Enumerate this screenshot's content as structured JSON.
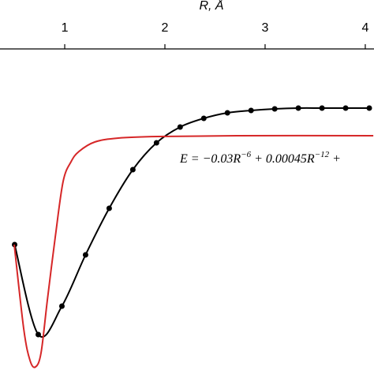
{
  "chart_data": {
    "type": "line",
    "xlabel": "R, Å",
    "xlim": [
      0.354,
      4.087
    ],
    "xticks": [
      1,
      2,
      3,
      4
    ],
    "ylim": [
      -3.02,
      1.1
    ],
    "annotation": [
      "E = −0.03R",
      "−6",
      " + 0.00045R",
      "−12",
      " +"
    ],
    "series": [
      {
        "color": "#000000",
        "markers": true,
        "x": [
          0.5,
          0.736,
          0.972,
          1.208,
          1.444,
          1.68,
          1.916,
          2.152,
          2.388,
          2.624,
          2.86,
          3.096,
          3.332,
          3.568,
          3.804,
          4.04
        ],
        "values": [
          -1.38,
          -2.52,
          -2.16,
          -1.51,
          -0.92,
          -0.43,
          -0.09,
          0.11,
          0.22,
          0.29,
          0.32,
          0.34,
          0.35,
          0.35,
          0.35,
          0.35
        ]
      },
      {
        "color": "#d62728",
        "markers": false,
        "x": [
          0.496,
          0.591,
          0.654,
          0.709,
          0.764,
          0.827,
          0.906,
          0.984,
          1.063,
          1.142,
          1.299,
          1.535,
          1.929,
          2.717,
          4.08
        ],
        "values": [
          -1.38,
          -2.45,
          -2.85,
          -2.93,
          -2.75,
          -2.08,
          -1.28,
          -0.58,
          -0.33,
          -0.2,
          -0.08,
          -0.03,
          -0.01,
          0,
          0
        ]
      }
    ]
  }
}
